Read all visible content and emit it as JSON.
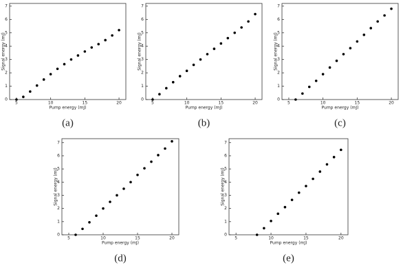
{
  "chart_data": [
    {
      "type": "scatter",
      "caption": "(a)",
      "xlabel": "Pump energy (mJ)",
      "ylabel": "Signal energy (mJ)",
      "xlim": [
        4,
        21
      ],
      "ylim": [
        0,
        7.2
      ],
      "xticks": [
        5,
        10,
        15,
        20
      ],
      "yticks": [
        0,
        1,
        2,
        3,
        4,
        5,
        6,
        7
      ],
      "color": "#000000",
      "x": [
        5,
        6,
        7,
        8,
        9,
        10,
        11,
        12,
        13,
        14,
        15,
        16,
        17,
        18,
        19,
        20
      ],
      "values": [
        0,
        0.2,
        0.6,
        1.05,
        1.5,
        1.9,
        2.3,
        2.65,
        3.0,
        3.3,
        3.6,
        3.9,
        4.15,
        4.45,
        4.8,
        5.2
      ]
    },
    {
      "type": "scatter",
      "caption": "(b)",
      "xlabel": "Pump energy (mJ)",
      "ylabel": "Signal energy (mJ)",
      "xlim": [
        4,
        21
      ],
      "ylim": [
        0,
        7.2
      ],
      "xticks": [
        5,
        10,
        15,
        20
      ],
      "yticks": [
        0,
        1,
        2,
        3,
        4,
        5,
        6,
        7
      ],
      "color": "#000000",
      "x": [
        5,
        6,
        7,
        8,
        9,
        10,
        11,
        12,
        13,
        14,
        15,
        16,
        17,
        18,
        19,
        20
      ],
      "values": [
        0,
        0.4,
        0.85,
        1.3,
        1.75,
        2.15,
        2.6,
        3.0,
        3.4,
        3.8,
        4.2,
        4.6,
        5.0,
        5.4,
        5.85,
        6.4
      ]
    },
    {
      "type": "scatter",
      "caption": "(c)",
      "xlabel": "Pump energy (mJ)",
      "ylabel": "Signal energy (mJ)",
      "xlim": [
        4,
        21
      ],
      "ylim": [
        0,
        7.2
      ],
      "xticks": [
        5,
        10,
        15,
        20
      ],
      "yticks": [
        0,
        1,
        2,
        3,
        4,
        5,
        6,
        7
      ],
      "color": "#000000",
      "x": [
        6,
        7,
        8,
        9,
        10,
        11,
        12,
        13,
        14,
        15,
        16,
        17,
        18,
        19,
        20
      ],
      "values": [
        0,
        0.45,
        0.95,
        1.4,
        1.9,
        2.4,
        2.9,
        3.4,
        3.85,
        4.35,
        4.85,
        5.35,
        5.85,
        6.3,
        6.8
      ]
    },
    {
      "type": "scatter",
      "caption": "(d)",
      "xlabel": "Pump energy (mJ)",
      "ylabel": "Signal energy (mJ)",
      "xlim": [
        4,
        21
      ],
      "ylim": [
        0,
        7.3
      ],
      "xticks": [
        5,
        10,
        15,
        20
      ],
      "yticks": [
        0,
        1,
        2,
        3,
        4,
        5,
        6,
        7
      ],
      "color": "#000000",
      "x": [
        6,
        7,
        8,
        9,
        10,
        11,
        12,
        13,
        14,
        15,
        16,
        17,
        18,
        19,
        20
      ],
      "values": [
        0,
        0.45,
        0.95,
        1.45,
        2.0,
        2.5,
        3.0,
        3.5,
        4.0,
        4.55,
        5.05,
        5.55,
        6.05,
        6.55,
        7.1
      ]
    },
    {
      "type": "scatter",
      "caption": "(e)",
      "xlabel": "Pump energy (mJ)",
      "ylabel": "Signal energy (mJ)",
      "xlim": [
        4,
        21
      ],
      "ylim": [
        0,
        7.3
      ],
      "xticks": [
        5,
        10,
        15,
        20
      ],
      "yticks": [
        0,
        1,
        2,
        3,
        4,
        5,
        6,
        7
      ],
      "color": "#000000",
      "x": [
        8,
        9,
        10,
        11,
        12,
        13,
        14,
        15,
        16,
        17,
        18,
        19,
        20
      ],
      "values": [
        0,
        0.5,
        1.05,
        1.6,
        2.1,
        2.65,
        3.2,
        3.7,
        4.25,
        4.8,
        5.35,
        5.9,
        6.45
      ]
    }
  ]
}
